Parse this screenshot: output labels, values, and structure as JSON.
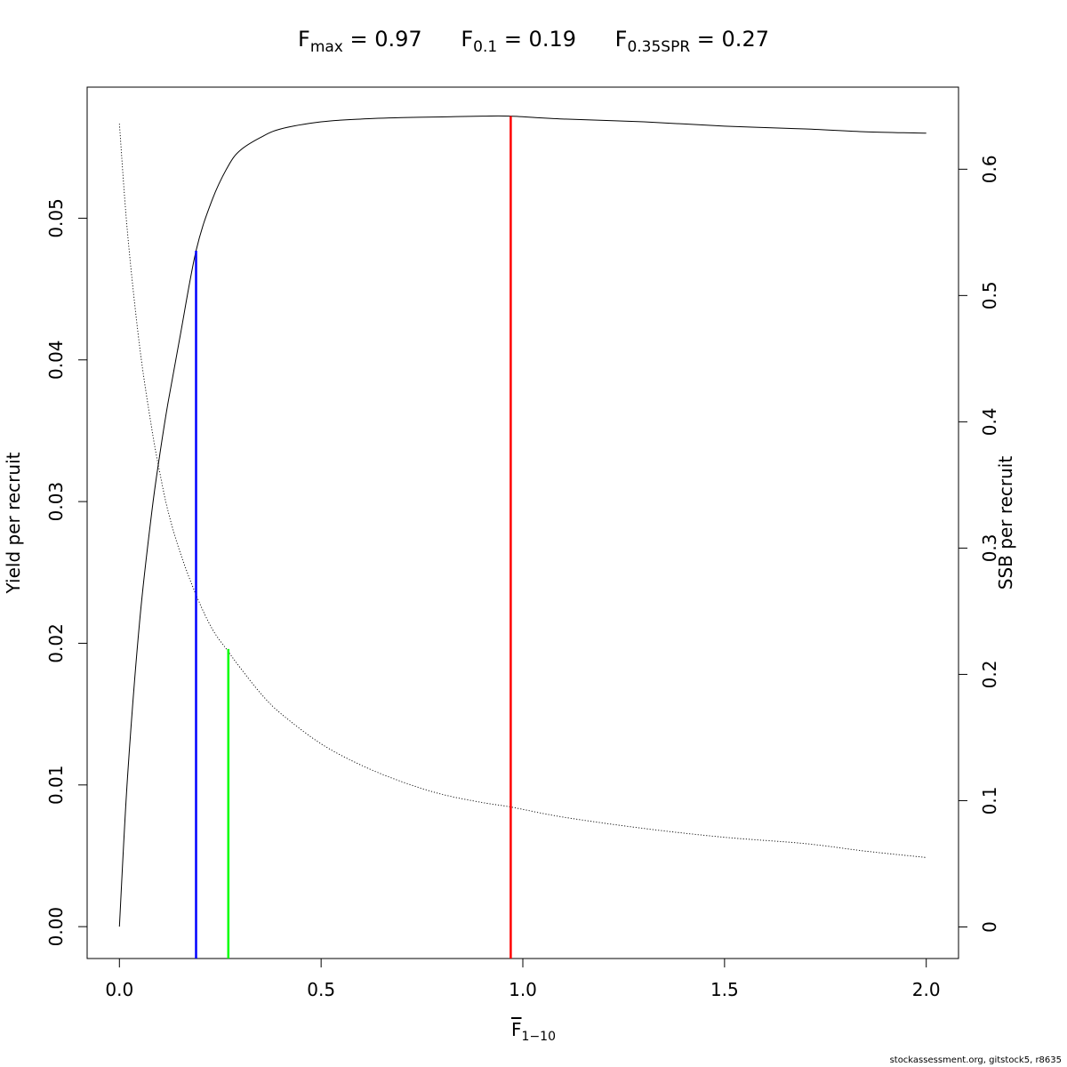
{
  "title": {
    "items": [
      {
        "sym": "F",
        "sub": "max",
        "text": " = 0.97"
      },
      {
        "sym": "F",
        "sub": "0.1",
        "text": " = 0.19"
      },
      {
        "sym": "F",
        "sub": "0.35SPR",
        "text": " = 0.27"
      }
    ]
  },
  "xlabel": {
    "sym": "F",
    "sub": "1−10"
  },
  "credit": "stockassessment.org, gitstock5, r8635",
  "chart_data": {
    "type": "line",
    "xlabel": "F̅ 1−10",
    "ylabel": "Yield per recruit",
    "y2label": "SSB per recruit",
    "xlim": [
      -0.08,
      2.08
    ],
    "ylim": [
      -0.00225,
      0.05925
    ],
    "y2lim": [
      -0.025,
      0.665
    ],
    "x_ticks": [
      0.0,
      0.5,
      1.0,
      1.5,
      2.0
    ],
    "x_tick_labels": [
      "0.0",
      "0.5",
      "1.0",
      "1.5",
      "2.0"
    ],
    "y_ticks": [
      0.0,
      0.01,
      0.02,
      0.03,
      0.04,
      0.05
    ],
    "y_tick_labels": [
      "0.00",
      "0.01",
      "0.02",
      "0.03",
      "0.04",
      "0.05"
    ],
    "y2_ticks": [
      0,
      0.1,
      0.2,
      0.3,
      0.4,
      0.5,
      0.6
    ],
    "y2_tick_labels": [
      "0",
      "0.1",
      "0.2",
      "0.3",
      "0.4",
      "0.5",
      "0.6"
    ],
    "grid": false,
    "series": [
      {
        "axis": "left",
        "style": "solid",
        "color": "#000000",
        "x": [
          0.0,
          0.02,
          0.05,
          0.08,
          0.1,
          0.12,
          0.15,
          0.19,
          0.23,
          0.27,
          0.3,
          0.35,
          0.4,
          0.5,
          0.6,
          0.7,
          0.8,
          0.9,
          0.97,
          1.1,
          1.3,
          1.5,
          1.7,
          1.85,
          2.0
        ],
        "values": [
          0.0,
          0.0105,
          0.0215,
          0.0292,
          0.0333,
          0.0369,
          0.0416,
          0.0477,
          0.0513,
          0.0537,
          0.0548,
          0.0557,
          0.0563,
          0.0568,
          0.057,
          0.0571,
          0.05715,
          0.0572,
          0.0572,
          0.057,
          0.0568,
          0.0565,
          0.0563,
          0.0561,
          0.056
        ]
      },
      {
        "axis": "right",
        "style": "dotted",
        "color": "#000000",
        "x": [
          0.0,
          0.02,
          0.05,
          0.08,
          0.1,
          0.12,
          0.15,
          0.19,
          0.23,
          0.27,
          0.3,
          0.35,
          0.4,
          0.5,
          0.6,
          0.7,
          0.8,
          0.9,
          0.97,
          1.1,
          1.3,
          1.5,
          1.7,
          1.85,
          2.0
        ],
        "values": [
          0.636,
          0.55,
          0.46,
          0.395,
          0.36,
          0.33,
          0.297,
          0.263,
          0.236,
          0.218,
          0.205,
          0.185,
          0.169,
          0.145,
          0.128,
          0.115,
          0.105,
          0.0985,
          0.095,
          0.087,
          0.078,
          0.071,
          0.066,
          0.06,
          0.055
        ]
      }
    ],
    "reference_lines": [
      {
        "name": "Fmax",
        "x": 0.97,
        "y_top": 0.0572,
        "color": "#ff0000"
      },
      {
        "name": "F0.1",
        "x": 0.19,
        "y_top": 0.0477,
        "color": "#0000ff"
      },
      {
        "name": "F0.35SPR",
        "x": 0.27,
        "y_top": 0.0196,
        "color": "#00ff00"
      }
    ]
  }
}
